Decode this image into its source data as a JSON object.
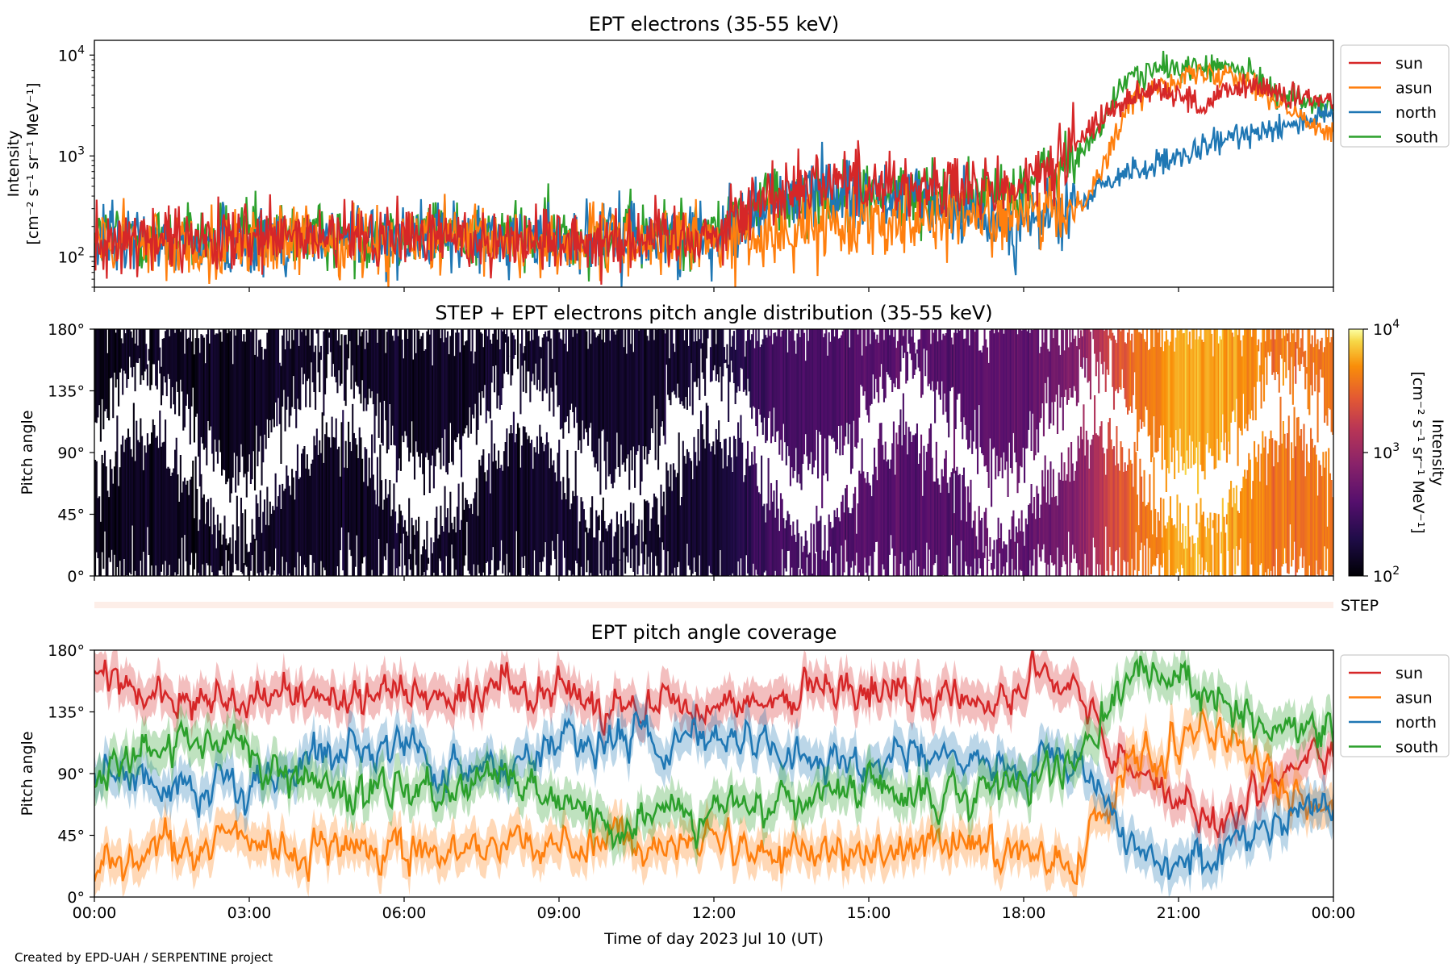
{
  "chart_data": [
    {
      "type": "line",
      "title": "EPT electrons (35-55 keV)",
      "ylabel_line1": "Intensity",
      "ylabel_line2": "[cm⁻² s⁻¹ sr⁻¹ MeV⁻¹]",
      "yscale": "log",
      "ylim": [
        50,
        14000
      ],
      "xlim_hours": [
        0,
        24
      ],
      "yticks": [
        {
          "value": 100,
          "exp": "2"
        },
        {
          "value": 1000,
          "exp": "3"
        },
        {
          "value": 10000,
          "exp": "4"
        }
      ],
      "legend_position": "outside-right",
      "legend": [
        {
          "name": "sun",
          "color": "#d62728"
        },
        {
          "name": "asun",
          "color": "#ff7f0e"
        },
        {
          "name": "north",
          "color": "#1f77b4"
        },
        {
          "name": "south",
          "color": "#2ca02c"
        }
      ],
      "series": [
        {
          "name": "south",
          "color": "#2ca02c",
          "x_hours": [
            0,
            2,
            4,
            6,
            8,
            10,
            12,
            13,
            14,
            15,
            16,
            17,
            18,
            19,
            19.5,
            20,
            20.5,
            21,
            21.5,
            22,
            22.5,
            23,
            23.5,
            24
          ],
          "values": [
            150,
            150,
            160,
            170,
            160,
            160,
            180,
            350,
            400,
            420,
            400,
            380,
            500,
            900,
            2000,
            6000,
            7000,
            7500,
            7500,
            7500,
            6000,
            4000,
            3500,
            3000
          ]
        },
        {
          "name": "north",
          "color": "#1f77b4",
          "x_hours": [
            0,
            2,
            4,
            6,
            8,
            10,
            12,
            13,
            14,
            15,
            16,
            17,
            18,
            19,
            19.5,
            20,
            20.5,
            21,
            21.5,
            22,
            22.5,
            23,
            23.5,
            24
          ],
          "values": [
            140,
            140,
            150,
            160,
            150,
            150,
            170,
            300,
            500,
            450,
            350,
            250,
            200,
            300,
            500,
            700,
            800,
            900,
            1200,
            1500,
            1800,
            2000,
            2300,
            2500
          ]
        },
        {
          "name": "asun",
          "color": "#ff7f0e",
          "x_hours": [
            0,
            2,
            4,
            6,
            8,
            10,
            12,
            13,
            14,
            15,
            16,
            17,
            18,
            19,
            19.5,
            20,
            20.5,
            21,
            21.5,
            22,
            22.5,
            23,
            23.5,
            24
          ],
          "values": [
            130,
            130,
            140,
            150,
            140,
            140,
            150,
            150,
            200,
            250,
            250,
            250,
            250,
            300,
            700,
            3000,
            5000,
            6000,
            6500,
            7000,
            5000,
            3000,
            2200,
            1800
          ]
        },
        {
          "name": "sun",
          "color": "#d62728",
          "x_hours": [
            0,
            2,
            4,
            6,
            8,
            10,
            12,
            13,
            14,
            15,
            16,
            17,
            18,
            19,
            19.5,
            20,
            20.5,
            21,
            21.5,
            22,
            22.5,
            23,
            23.5,
            24
          ],
          "values": [
            140,
            140,
            150,
            160,
            150,
            150,
            170,
            400,
            600,
            550,
            500,
            450,
            500,
            1200,
            2500,
            3500,
            5000,
            4000,
            3000,
            4500,
            5000,
            4000,
            3500,
            3500
          ]
        }
      ]
    },
    {
      "type": "heatmap",
      "title": "STEP + EPT electrons pitch angle distribution (35-55 keV)",
      "ylabel": "Pitch angle",
      "ylim_deg": [
        0,
        180
      ],
      "yticks": [
        "0°",
        "45°",
        "90°",
        "135°",
        "180°"
      ],
      "colorbar": {
        "scale": "log",
        "range": [
          100,
          10000
        ],
        "ticks": [
          {
            "value": 100,
            "exp": "2"
          },
          {
            "value": 1000,
            "exp": "3"
          },
          {
            "value": 10000,
            "exp": "4"
          }
        ],
        "label_line1": "Intensity",
        "label_line2": "[cm⁻² s⁻¹ sr⁻¹ MeV⁻¹]",
        "colormap": "inferno"
      },
      "intensity_trend": {
        "x_hours": [
          0,
          6,
          12,
          13,
          15,
          17,
          18,
          19,
          19.5,
          20,
          21,
          22,
          23,
          24
        ],
        "values": [
          130,
          140,
          150,
          300,
          400,
          420,
          450,
          700,
          1500,
          3000,
          6000,
          5500,
          4000,
          3500
        ]
      }
    },
    {
      "type": "line",
      "title": "EPT pitch angle coverage",
      "ylabel": "Pitch angle",
      "ylim_deg": [
        0,
        180
      ],
      "yticks": [
        "0°",
        "45°",
        "90°",
        "135°",
        "180°"
      ],
      "xlabel": "Time of day 2023 Jul 10 (UT)",
      "xticks": [
        "00:00",
        "03:00",
        "06:00",
        "09:00",
        "12:00",
        "15:00",
        "18:00",
        "21:00",
        "00:00"
      ],
      "legend_position": "outside-right",
      "legend": [
        {
          "name": "sun",
          "color": "#d62728"
        },
        {
          "name": "asun",
          "color": "#ff7f0e"
        },
        {
          "name": "north",
          "color": "#1f77b4"
        },
        {
          "name": "south",
          "color": "#2ca02c"
        }
      ],
      "series": [
        {
          "name": "sun",
          "color": "#d62728",
          "x_hours": [
            0,
            1,
            2,
            3,
            4,
            5,
            6,
            7,
            8,
            9,
            10,
            11,
            12,
            13,
            14,
            15,
            16,
            17,
            18,
            19,
            19.5,
            20,
            20.5,
            21,
            21.5,
            22,
            22.5,
            23,
            24
          ],
          "values": [
            160,
            150,
            140,
            145,
            150,
            145,
            155,
            150,
            150,
            150,
            140,
            145,
            140,
            145,
            150,
            150,
            145,
            145,
            150,
            160,
            120,
            95,
            85,
            70,
            60,
            55,
            70,
            90,
            110
          ]
        },
        {
          "name": "asun",
          "color": "#ff7f0e",
          "x_hours": [
            0,
            1,
            2,
            3,
            4,
            5,
            6,
            7,
            8,
            9,
            10,
            11,
            12,
            13,
            14,
            15,
            16,
            17,
            18,
            19,
            19.5,
            20,
            20.5,
            21,
            21.5,
            22,
            22.5,
            23,
            24
          ],
          "values": [
            20,
            30,
            35,
            40,
            35,
            40,
            30,
            35,
            40,
            40,
            40,
            35,
            40,
            35,
            30,
            35,
            40,
            40,
            35,
            25,
            60,
            90,
            100,
            115,
            120,
            115,
            100,
            80,
            70
          ]
        },
        {
          "name": "north",
          "color": "#1f77b4",
          "x_hours": [
            0,
            1,
            2,
            3,
            4,
            5,
            6,
            7,
            8,
            9,
            10,
            11,
            12,
            13,
            14,
            15,
            16,
            17,
            18,
            19,
            19.5,
            20,
            20.5,
            21,
            21.5,
            22,
            22.5,
            23,
            24
          ],
          "values": [
            100,
            80,
            70,
            75,
            100,
            110,
            105,
            100,
            95,
            110,
            120,
            110,
            115,
            110,
            100,
            100,
            105,
            100,
            95,
            100,
            75,
            45,
            25,
            20,
            30,
            40,
            55,
            60,
            65
          ]
        },
        {
          "name": "south",
          "color": "#2ca02c",
          "x_hours": [
            0,
            1,
            2,
            3,
            4,
            5,
            6,
            7,
            8,
            9,
            10,
            11,
            12,
            13,
            14,
            15,
            16,
            17,
            18,
            19,
            19.5,
            20,
            20.5,
            21,
            21.5,
            22,
            22.5,
            23,
            24
          ],
          "values": [
            80,
            110,
            115,
            110,
            85,
            75,
            80,
            80,
            85,
            70,
            55,
            65,
            60,
            65,
            70,
            75,
            70,
            75,
            85,
            95,
            130,
            160,
            165,
            160,
            150,
            140,
            130,
            125,
            120
          ]
        }
      ]
    }
  ],
  "step_label": "STEP",
  "credit": "Created by EPD-UAH / SERPENTINE project"
}
